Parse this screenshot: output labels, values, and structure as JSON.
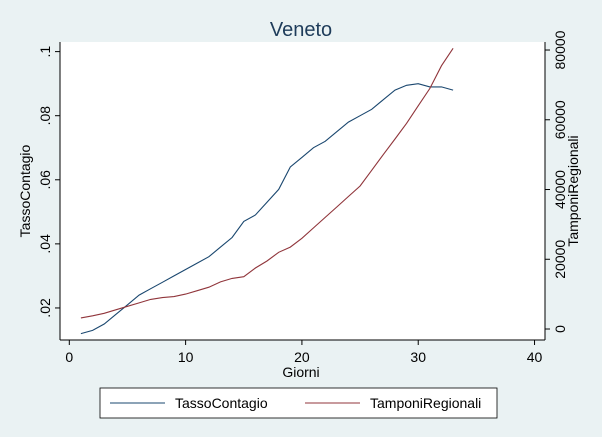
{
  "chart_data": {
    "type": "line",
    "title": "Veneto",
    "xlabel": "Giorni",
    "ylabel": "TassoContagio",
    "y2label": "TamponiRegionali",
    "x": [
      1,
      2,
      3,
      4,
      5,
      6,
      7,
      8,
      9,
      10,
      11,
      12,
      13,
      14,
      15,
      16,
      17,
      18,
      19,
      20,
      21,
      22,
      23,
      24,
      25,
      26,
      27,
      28,
      29,
      30,
      31,
      32,
      33
    ],
    "series": [
      {
        "name": "TassoContagio",
        "color": "#1a476f",
        "values": [
          0.012,
          0.013,
          0.015,
          0.018,
          0.021,
          0.024,
          0.026,
          0.028,
          0.03,
          0.032,
          0.034,
          0.036,
          0.039,
          0.042,
          0.047,
          0.049,
          0.053,
          0.057,
          0.064,
          0.067,
          0.07,
          0.072,
          0.075,
          0.078,
          0.08,
          0.082,
          0.085,
          0.088,
          0.0895,
          0.09,
          0.089,
          0.089,
          0.088
        ]
      },
      {
        "name": "TamponiRegionali",
        "color": "#90353b",
        "axis": "y2",
        "values": [
          3200,
          3800,
          4500,
          5500,
          6500,
          7500,
          8500,
          9000,
          9300,
          10000,
          11000,
          12000,
          13500,
          14500,
          15000,
          17500,
          19500,
          22000,
          23500,
          26000,
          29000,
          32000,
          35000,
          38000,
          41000,
          45500,
          50000,
          54500,
          59000,
          64000,
          69000,
          75500,
          80500
        ]
      }
    ],
    "xlim": [
      -0.8,
      40.9
    ],
    "xticks": [
      0,
      10,
      20,
      30,
      40
    ],
    "ylim": [
      0.01,
      0.103
    ],
    "yticks": [
      {
        "value": 0.02,
        "label": ".02"
      },
      {
        "value": 0.04,
        "label": ".04"
      },
      {
        "value": 0.06,
        "label": ".06"
      },
      {
        "value": 0.08,
        "label": ".08"
      },
      {
        "value": 0.1,
        "label": ".1"
      }
    ],
    "y2lim": [
      -3150,
      82300
    ],
    "y2ticks": [
      0,
      20000,
      40000,
      60000,
      80000
    ],
    "legend": "bottom"
  }
}
